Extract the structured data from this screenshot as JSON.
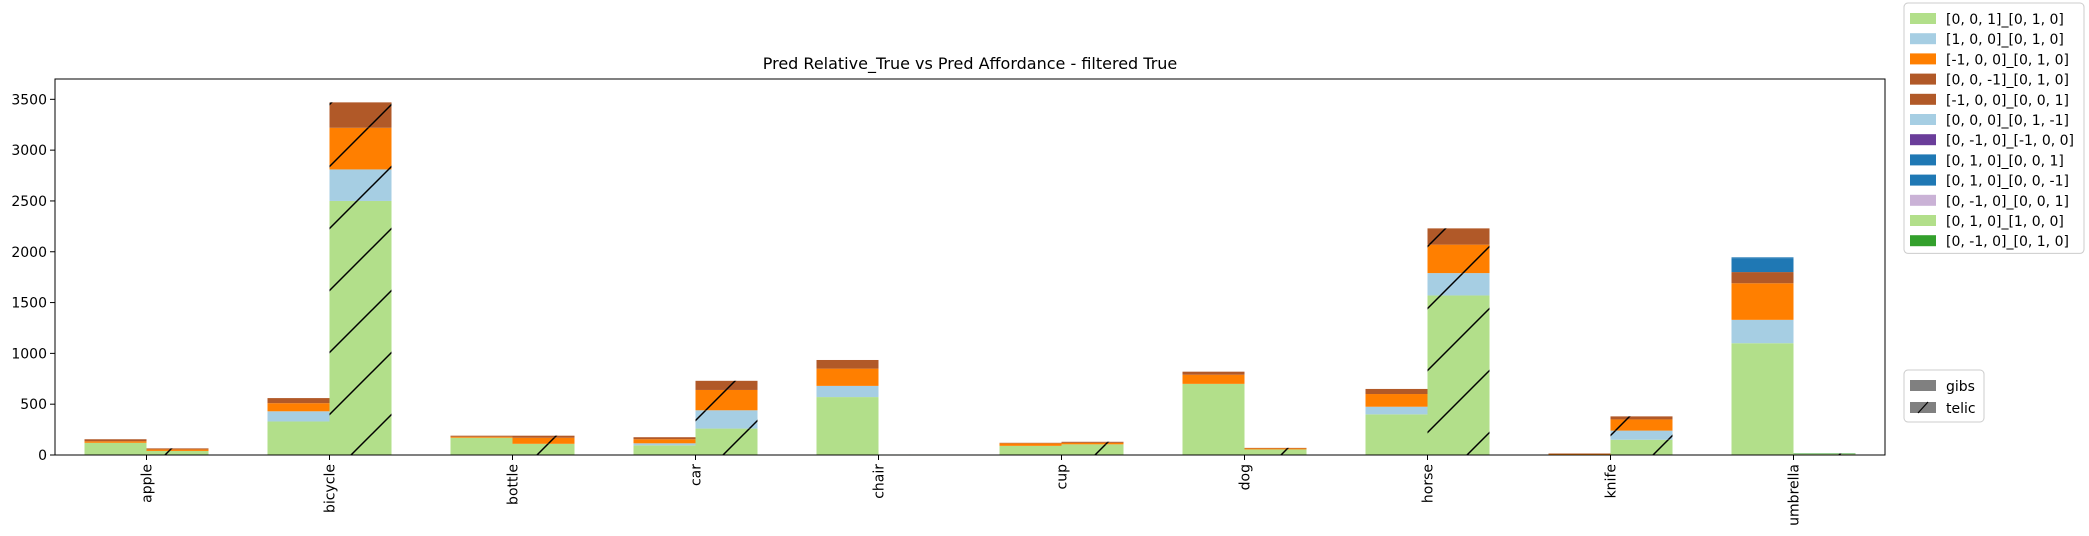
{
  "chart_data": {
    "type": "bar",
    "title": "Pred Relative_True vs Pred Affordance - filtered True",
    "xlabel": "",
    "ylabel": "",
    "ylim": [
      0,
      3700
    ],
    "yticks": [
      0,
      500,
      1000,
      1500,
      2000,
      2500,
      3000,
      3500
    ],
    "stacked": true,
    "categories": [
      "apple",
      "bicycle",
      "bottle",
      "car",
      "chair",
      "cup",
      "dog",
      "horse",
      "knife",
      "umbrella"
    ],
    "groups": [
      {
        "name": "gibs",
        "hatch": false
      },
      {
        "name": "telic",
        "hatch": true
      }
    ],
    "series": [
      {
        "name": "[0, 0, 1]_[0, 1, 0]",
        "color": "#b2df8a",
        "gibs": [
          120,
          330,
          170,
          95,
          570,
          90,
          700,
          400,
          0,
          1100
        ],
        "telic": [
          40,
          2500,
          110,
          260,
          5,
          105,
          55,
          1570,
          150,
          10
        ]
      },
      {
        "name": "[1, 0, 0]_[0, 1, 0]",
        "color": "#a6cee3",
        "gibs": [
          0,
          100,
          0,
          20,
          110,
          0,
          0,
          75,
          0,
          230
        ],
        "telic": [
          0,
          310,
          0,
          180,
          0,
          0,
          0,
          220,
          90,
          0
        ]
      },
      {
        "name": "[-1, 0, 0]_[0, 1, 0]",
        "color": "#ff7f00",
        "gibs": [
          15,
          80,
          10,
          40,
          170,
          25,
          90,
          125,
          10,
          360
        ],
        "telic": [
          15,
          410,
          60,
          200,
          0,
          15,
          10,
          280,
          110,
          0
        ]
      },
      {
        "name": "[0, 0, -1]_[0, 1, 0]",
        "color": "#b15928",
        "gibs": [
          20,
          50,
          10,
          20,
          85,
          5,
          30,
          50,
          5,
          110
        ],
        "telic": [
          10,
          250,
          20,
          90,
          0,
          10,
          5,
          160,
          30,
          0
        ]
      },
      {
        "name": "[-1, 0, 0]_[0, 0, 1]",
        "color": "#b15928",
        "gibs": [
          0,
          0,
          0,
          0,
          0,
          0,
          0,
          0,
          0,
          0
        ],
        "telic": [
          0,
          0,
          0,
          0,
          0,
          0,
          0,
          0,
          0,
          0
        ]
      },
      {
        "name": "[0, 0, 0]_[0, 1, -1]",
        "color": "#a6cee3",
        "gibs": [
          0,
          0,
          0,
          0,
          0,
          0,
          0,
          0,
          0,
          0
        ],
        "telic": [
          0,
          0,
          0,
          0,
          0,
          0,
          0,
          0,
          0,
          0
        ]
      },
      {
        "name": "[0, -1, 0]_[-1, 0, 0]",
        "color": "#6a3d9a",
        "gibs": [
          0,
          0,
          0,
          0,
          0,
          0,
          0,
          0,
          0,
          0
        ],
        "telic": [
          0,
          0,
          0,
          0,
          0,
          0,
          0,
          0,
          0,
          0
        ]
      },
      {
        "name": "[0, 1, 0]_[0, 0, 1]",
        "color": "#1f78b4",
        "gibs": [
          0,
          0,
          0,
          0,
          0,
          0,
          0,
          0,
          0,
          130
        ],
        "telic": [
          0,
          0,
          0,
          0,
          0,
          0,
          0,
          0,
          0,
          0
        ]
      },
      {
        "name": "[0, 1, 0]_[0, 0, -1]",
        "color": "#1f78b4",
        "gibs": [
          0,
          0,
          0,
          0,
          0,
          0,
          0,
          0,
          0,
          15
        ],
        "telic": [
          0,
          0,
          0,
          0,
          0,
          0,
          0,
          0,
          0,
          0
        ]
      },
      {
        "name": "[0, -1, 0]_[0, 0, 1]",
        "color": "#cab2d6",
        "gibs": [
          0,
          0,
          0,
          0,
          0,
          0,
          0,
          0,
          0,
          0
        ],
        "telic": [
          0,
          0,
          0,
          0,
          0,
          0,
          0,
          0,
          0,
          0
        ]
      },
      {
        "name": "[0, 1, 0]_[1, 0, 0]",
        "color": "#b2df8a",
        "gibs": [
          0,
          0,
          0,
          0,
          0,
          0,
          0,
          0,
          0,
          0
        ],
        "telic": [
          0,
          0,
          0,
          0,
          0,
          0,
          0,
          0,
          0,
          0
        ]
      },
      {
        "name": "[0, -1, 0]_[0, 1, 0]",
        "color": "#33a02c",
        "gibs": [
          0,
          0,
          0,
          0,
          0,
          0,
          0,
          0,
          0,
          0
        ],
        "telic": [
          0,
          0,
          0,
          0,
          0,
          0,
          0,
          0,
          0,
          5
        ]
      }
    ],
    "grid": false,
    "legend_position": "right, outside plot (top)",
    "group_legend_position": "right, outside plot (bottom)"
  }
}
